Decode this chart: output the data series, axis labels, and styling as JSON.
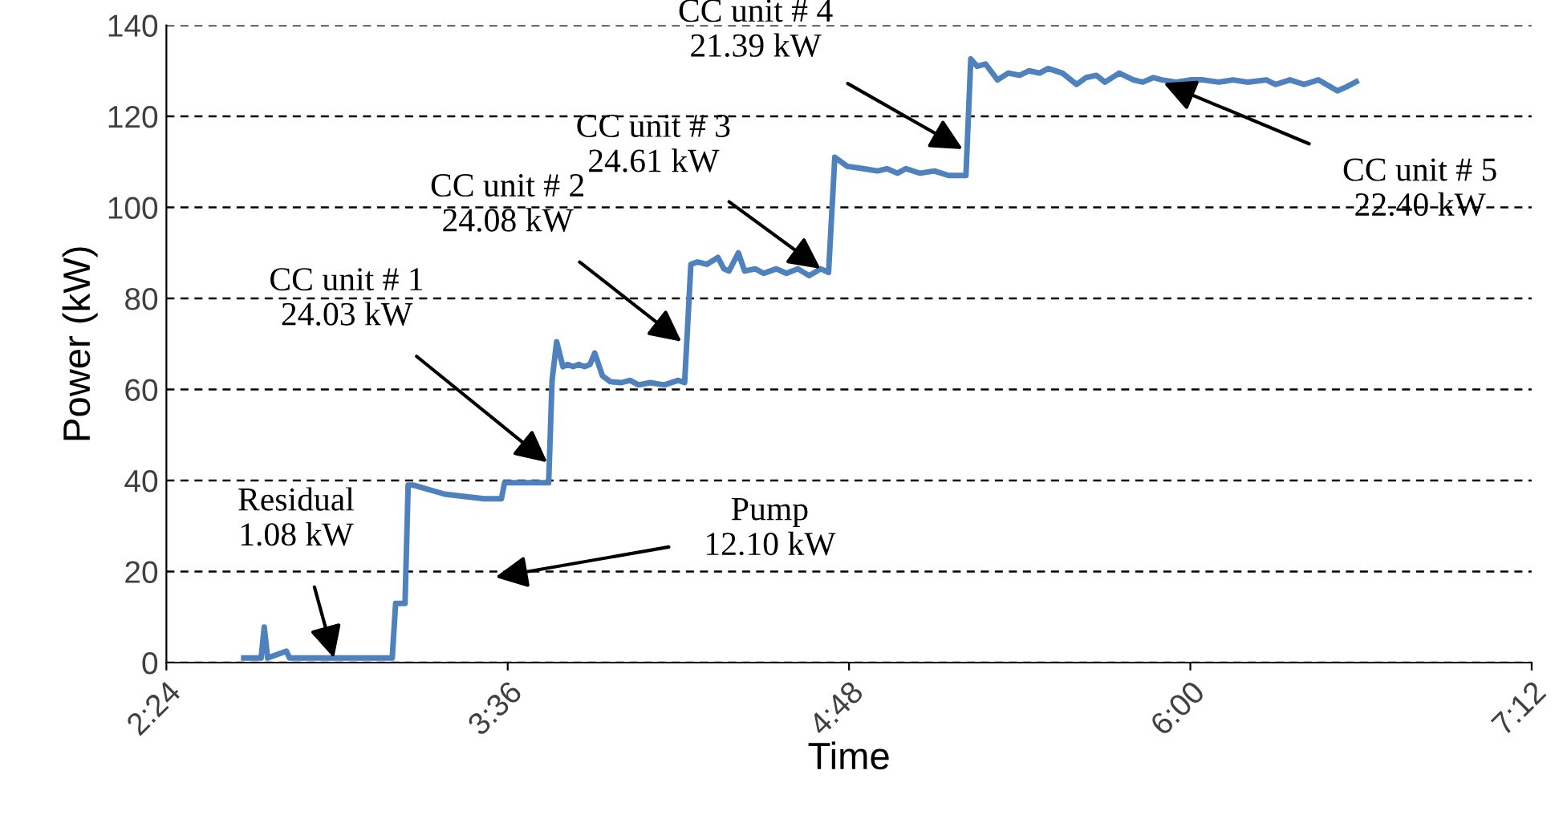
{
  "chart_data": {
    "type": "line",
    "xlabel": "Time",
    "ylabel": "Power (kW)",
    "xlim": [
      2.4,
      7.2
    ],
    "xticks": [
      {
        "value": 2.4,
        "label": "2:24"
      },
      {
        "value": 3.6,
        "label": "3:36"
      },
      {
        "value": 4.8,
        "label": "4:48"
      },
      {
        "value": 6.0,
        "label": "6:00"
      },
      {
        "value": 7.2,
        "label": "7:12"
      }
    ],
    "ylim": [
      0,
      140
    ],
    "yticks": [
      0,
      20,
      40,
      60,
      80,
      100,
      120,
      140
    ],
    "grid": "y",
    "marker": "none",
    "line_style": "solid",
    "series": [
      {
        "color": "#4f81bd",
        "x": [
          2.672,
          2.733,
          2.744,
          2.756,
          2.822,
          2.833,
          2.844,
          3.194,
          3.206,
          3.239,
          3.25,
          3.267,
          3.378,
          3.517,
          3.578,
          3.589,
          3.744,
          3.756,
          3.772,
          3.794,
          3.81,
          3.83,
          3.85,
          3.87,
          3.889,
          3.906,
          3.933,
          3.961,
          4.0,
          4.03,
          4.06,
          4.1,
          4.15,
          4.2,
          4.222,
          4.244,
          4.267,
          4.3,
          4.339,
          4.36,
          4.378,
          4.411,
          4.433,
          4.47,
          4.5,
          4.544,
          4.58,
          4.62,
          4.66,
          4.7,
          4.728,
          4.75,
          4.794,
          4.85,
          4.9,
          4.933,
          4.97,
          5.0,
          5.05,
          5.1,
          5.15,
          5.211,
          5.228,
          5.25,
          5.28,
          5.322,
          5.36,
          5.4,
          5.433,
          5.47,
          5.5,
          5.55,
          5.6,
          5.633,
          5.67,
          5.7,
          5.75,
          5.8,
          5.833,
          5.87,
          5.9,
          5.95,
          6.0,
          6.044,
          6.1,
          6.15,
          6.2,
          6.267,
          6.3,
          6.35,
          6.4,
          6.45,
          6.489,
          6.517,
          6.55,
          6.583
        ],
        "values": [
          1,
          1,
          7.8,
          1,
          2.5,
          1,
          1,
          1,
          13,
          13,
          39,
          39,
          37,
          36,
          36,
          39.5,
          39.5,
          62,
          70.5,
          65,
          65.5,
          65,
          65.5,
          65,
          65.5,
          68,
          63,
          61.7,
          61.5,
          62,
          61,
          61.5,
          61,
          62,
          61.5,
          87.5,
          88,
          87.5,
          89,
          86.5,
          86,
          90,
          86,
          86.5,
          85.5,
          86.5,
          85.5,
          86.5,
          85,
          86.5,
          85.7,
          111,
          109,
          108.5,
          108,
          108.5,
          107.5,
          108.5,
          107.5,
          108,
          107,
          107,
          132.6,
          131,
          131.5,
          128,
          129.5,
          129,
          130,
          129.5,
          130.5,
          129.5,
          127,
          128.5,
          129,
          127.5,
          129.5,
          128,
          127.5,
          128.5,
          128,
          127.5,
          128,
          128,
          127.5,
          128,
          127.5,
          128,
          127,
          128,
          127,
          128,
          126.6,
          125.6,
          126.5,
          127.6
        ]
      }
    ],
    "annotations": [
      {
        "text": "Residual\n1.08 kW",
        "x": 2.989,
        "y": 1
      },
      "Pump\n12.10 kW",
      {
        "text": "CC unit # 1\n24.03 kW",
        "x": 3.739,
        "y": 44
      },
      {
        "text": "CC unit # 2\n24.08 kW",
        "x": 4.211,
        "y": 70.5
      },
      {
        "text": "CC unit # 3\n24.61 kW",
        "x": 4.7,
        "y": 86.5
      },
      {
        "text": "CC unit # 4\n21.39 kW",
        "x": 5.2,
        "y": 112.8
      },
      {
        "text": "CC unit # 5\n22.40 kW",
        "x": 5.906,
        "y": 127.3
      }
    ]
  }
}
